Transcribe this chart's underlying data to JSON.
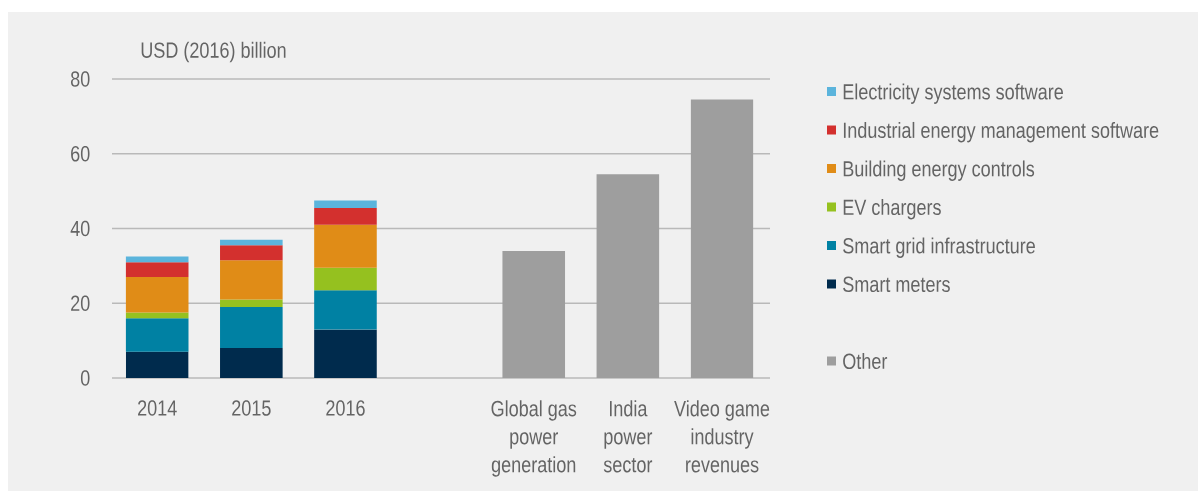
{
  "chart_data": {
    "type": "bar",
    "stacked": true,
    "ylabel": "USD (2016) billion",
    "categories": [
      "2014",
      "2015",
      "2016",
      null,
      "Global gas power generation",
      "India power sector",
      "Video game industry revenues"
    ],
    "series": [
      {
        "name": "Smart meters",
        "color": "#002b4d",
        "values": [
          7,
          8,
          13,
          null,
          null,
          null,
          null
        ]
      },
      {
        "name": "Smart grid infrastructure",
        "color": "#0081a3",
        "values": [
          9,
          11,
          10.5,
          null,
          null,
          null,
          null
        ]
      },
      {
        "name": "EV chargers",
        "color": "#95c11f",
        "values": [
          1.5,
          2,
          6,
          null,
          null,
          null,
          null
        ]
      },
      {
        "name": "Building energy controls",
        "color": "#e08c17",
        "values": [
          9.5,
          10.5,
          11.5,
          null,
          null,
          null,
          null
        ]
      },
      {
        "name": "Industrial energy management software",
        "color": "#d3302e",
        "values": [
          4,
          4,
          4.5,
          null,
          null,
          null,
          null
        ]
      },
      {
        "name": "Electricity systems software",
        "color": "#5bb4dc",
        "values": [
          1.5,
          1.5,
          2,
          null,
          null,
          null,
          null
        ]
      },
      {
        "name": "Other",
        "color": "#9e9e9e",
        "values": [
          null,
          null,
          null,
          null,
          34,
          54.5,
          74.5
        ]
      }
    ],
    "ylim": [
      0,
      80
    ],
    "yticks": [
      0,
      20,
      40,
      60,
      80
    ],
    "grid": "y",
    "legend": "right"
  }
}
